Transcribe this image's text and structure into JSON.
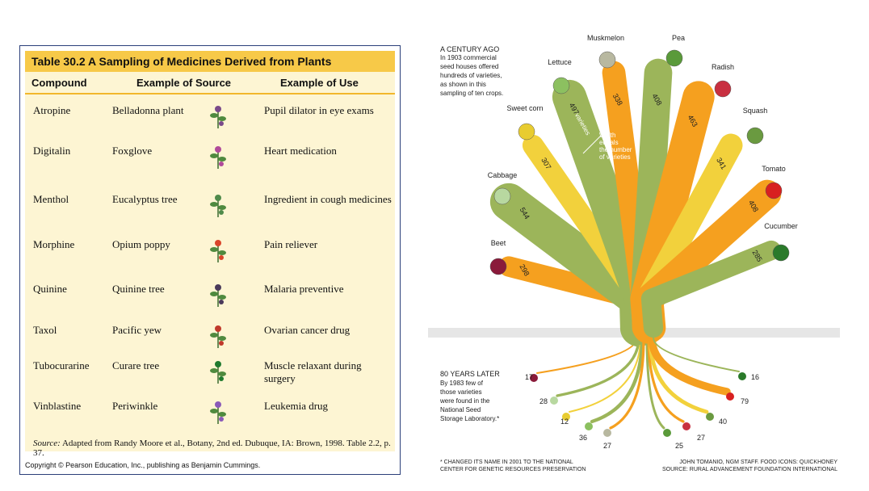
{
  "table": {
    "title": "Table 30.2  A Sampling of Medicines Derived from Plants",
    "headers": [
      "Compound",
      "Example of Source",
      "Example of Use"
    ],
    "rows": [
      {
        "compound": "Atropine",
        "source": "Belladonna plant",
        "use": "Pupil dilator in eye exams",
        "icon": "belladonna-icon"
      },
      {
        "compound": "Digitalin",
        "source": "Foxglove",
        "use": "Heart medication",
        "icon": "foxglove-icon"
      },
      {
        "compound": "Menthol",
        "source": "Eucalyptus tree",
        "use": "Ingredient in cough medicines",
        "icon": "eucalyptus-icon"
      },
      {
        "compound": "Morphine",
        "source": "Opium poppy",
        "use": "Pain reliever",
        "icon": "poppy-icon"
      },
      {
        "compound": "Quinine",
        "source": "Quinine tree",
        "use": "Malaria preventive",
        "icon": "quinine-tree-icon"
      },
      {
        "compound": "Taxol",
        "source": "Pacific yew",
        "use": "Ovarian cancer drug",
        "icon": "yew-icon"
      },
      {
        "compound": "Tubocurarine",
        "source": "Curare tree",
        "use": "Muscle relaxant during surgery",
        "icon": "curare-leaf-icon"
      },
      {
        "compound": "Vinblastine",
        "source": "Periwinkle",
        "use": "Leukemia drug",
        "icon": "periwinkle-icon"
      }
    ],
    "source_label": "Source:",
    "source_text": "Adapted from Randy Moore et al., Botany, 2nd ed. Dubuque, IA: Brown, 1998. Table 2.2, p. 37.",
    "copyright": "Copyright © Pearson Education, Inc., publishing as Benjamin Cummings."
  },
  "infographic": {
    "top_heading": "A CENTURY AGO",
    "top_text": [
      "In 1903 commercial",
      "seed houses offered",
      "hundreds of varieties,",
      "as shown in this",
      "sampling of ten crops."
    ],
    "width_note": [
      "Width",
      "equals",
      "the number",
      "of varieties"
    ],
    "varieties_word": "varieties",
    "bottom_heading": "80 YEARS LATER",
    "bottom_text": [
      "By 1983 few of",
      "those varieties",
      "were found in the",
      "National Seed",
      "Storage Laboratory.*"
    ],
    "footnote": [
      "* CHANGED ITS NAME IN 2001 TO THE NATIONAL",
      "CENTER FOR GENETIC RESOURCES PRESERVATION"
    ],
    "credit": [
      "JOHN TOMANIO, NGM STAFF. FOOD ICONS: QUICKHONEY",
      "SOURCE: RURAL ADVANCEMENT FOUNDATION INTERNATIONAL"
    ],
    "colors": {
      "orange": "#f5a01f",
      "green": "#9cb55a",
      "yellow": "#f2d13c",
      "ground": "#e6e6e6"
    }
  },
  "chart_data": {
    "type": "bar",
    "categories": [
      "Beet",
      "Cabbage",
      "Sweet corn",
      "Lettuce",
      "Muskmelon",
      "Pea",
      "Radish",
      "Squash",
      "Tomato",
      "Cucumber"
    ],
    "series": [
      {
        "name": "A CENTURY AGO",
        "values": [
          298,
          544,
          307,
          497,
          338,
          408,
          463,
          341,
          408,
          285
        ]
      },
      {
        "name": "80 YEARS LATER",
        "values": [
          17,
          28,
          12,
          36,
          27,
          25,
          27,
          40,
          79,
          16
        ]
      }
    ],
    "colors": [
      "orange",
      "green",
      "yellow",
      "green",
      "orange",
      "green",
      "orange",
      "yellow",
      "orange",
      "green"
    ]
  }
}
